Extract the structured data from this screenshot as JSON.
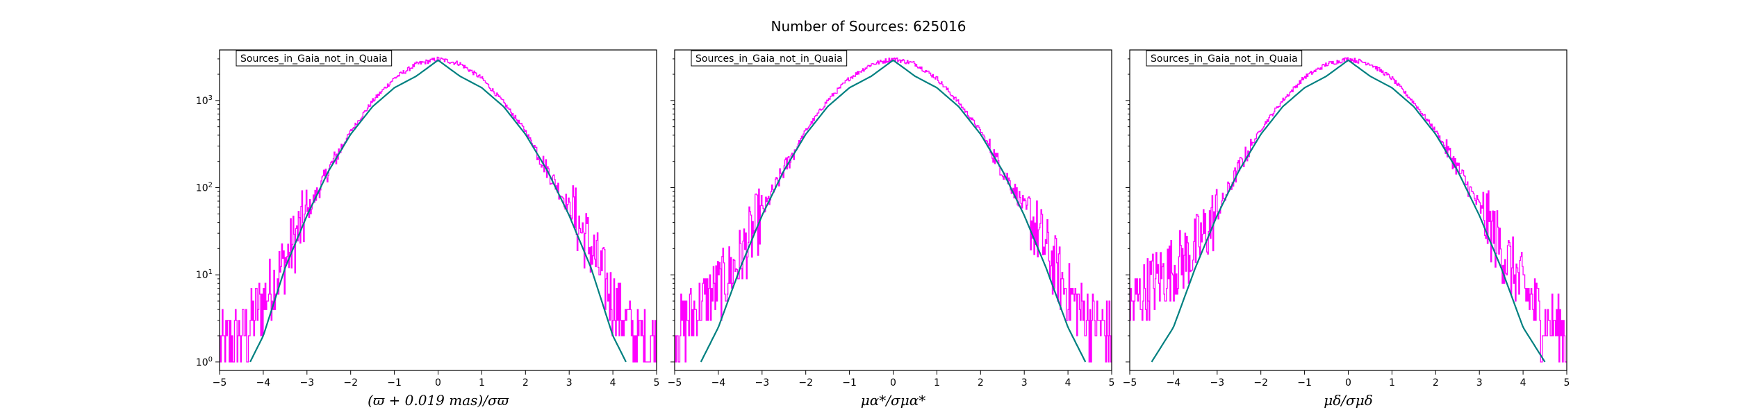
{
  "figure": {
    "title": "Number of Sources: 625016",
    "colors": {
      "histogram": "#ff00ff",
      "model": "#008080",
      "axes": "#000000"
    }
  },
  "chart_data": [
    {
      "type": "line",
      "panel": 1,
      "legend": "Sources_in_Gaia_not_in_Quaia",
      "legend_placement": "top-left",
      "xlabel": "(ϖ + 0.019 mas)/σϖ",
      "yscale": "log",
      "xlim": [
        -5,
        5
      ],
      "ylim": [
        0.8,
        3800
      ],
      "x_ticks": [
        "−5",
        "−4",
        "−3",
        "−2",
        "−1",
        "0",
        "1",
        "2",
        "3",
        "4",
        "5"
      ],
      "y_ticks": [
        {
          "base": "10",
          "exp": "0",
          "value": 1
        },
        {
          "base": "10",
          "exp": "1",
          "value": 10
        },
        {
          "base": "10",
          "exp": "2",
          "value": 100
        },
        {
          "base": "10",
          "exp": "3",
          "value": 1000
        }
      ],
      "grid": false,
      "series": [
        {
          "kind": "histogram",
          "x": [
            -5,
            -4.5,
            -4,
            -3.5,
            -3,
            -2.5,
            -2,
            -1.5,
            -1,
            -0.5,
            0,
            0.5,
            1,
            1.5,
            2,
            2.5,
            3,
            3.5,
            4,
            4.5,
            5
          ],
          "values": [
            1.5,
            2,
            5,
            14,
            50,
            160,
            440,
            980,
            1800,
            2600,
            3000,
            2650,
            1800,
            950,
            450,
            160,
            60,
            20,
            5,
            2,
            1.5
          ]
        },
        {
          "kind": "model",
          "x": [
            -4.3,
            -4,
            -3.5,
            -3,
            -2.5,
            -2,
            -1.5,
            -1,
            -0.5,
            0,
            0.5,
            1,
            1.5,
            2,
            2.5,
            3,
            3.5,
            4,
            4.3
          ],
          "values": [
            1,
            2,
            12,
            48,
            157,
            410,
            850,
            1400,
            1900,
            2900,
            1900,
            1400,
            850,
            410,
            157,
            48,
            12,
            2,
            1
          ]
        }
      ]
    },
    {
      "type": "line",
      "panel": 2,
      "legend": "Sources_in_Gaia_not_in_Quaia",
      "legend_placement": "top-left",
      "xlabel": "μα*/σμα*",
      "yscale": "log",
      "xlim": [
        -5,
        5
      ],
      "ylim": [
        0.8,
        3800
      ],
      "x_ticks": [
        "−5",
        "−4",
        "−3",
        "−2",
        "−1",
        "0",
        "1",
        "2",
        "3",
        "4",
        "5"
      ],
      "grid": false,
      "series": [
        {
          "kind": "histogram",
          "x": [
            -5,
            -4.5,
            -4,
            -3.5,
            -3,
            -2.5,
            -2,
            -1.5,
            -1,
            -0.5,
            0,
            0.5,
            1,
            1.5,
            2,
            2.5,
            3,
            3.5,
            4,
            4.5,
            5
          ],
          "values": [
            2,
            4,
            7,
            15,
            50,
            160,
            450,
            1000,
            1800,
            2600,
            3000,
            2650,
            1800,
            950,
            450,
            160,
            60,
            20,
            6,
            3,
            2
          ]
        },
        {
          "kind": "model",
          "x": [
            -4.4,
            -4,
            -3.5,
            -3,
            -2.5,
            -2,
            -1.5,
            -1,
            -0.5,
            0,
            0.5,
            1,
            1.5,
            2,
            2.5,
            3,
            3.5,
            4,
            4.4
          ],
          "values": [
            1,
            2.5,
            12,
            48,
            157,
            410,
            850,
            1400,
            1900,
            2900,
            1900,
            1400,
            850,
            410,
            157,
            48,
            12,
            2.5,
            1
          ]
        }
      ]
    },
    {
      "type": "line",
      "panel": 3,
      "legend": "Sources_in_Gaia_not_in_Quaia",
      "legend_placement": "top-left",
      "xlabel": "μδ/σμδ",
      "yscale": "log",
      "xlim": [
        -5,
        5
      ],
      "ylim": [
        0.8,
        3800
      ],
      "x_ticks": [
        "−5",
        "−4",
        "−3",
        "−2",
        "−1",
        "0",
        "1",
        "2",
        "3",
        "4",
        "5"
      ],
      "grid": false,
      "series": [
        {
          "kind": "histogram",
          "x": [
            -5,
            -4.5,
            -4,
            -3.5,
            -3,
            -2.5,
            -2,
            -1.5,
            -1,
            -0.5,
            0,
            0.5,
            1,
            1.5,
            2,
            2.5,
            3,
            3.5,
            4,
            4.5,
            5
          ],
          "values": [
            4,
            8,
            12,
            20,
            50,
            170,
            470,
            1000,
            1850,
            2600,
            3000,
            2650,
            1800,
            950,
            450,
            170,
            60,
            20,
            7,
            3,
            2
          ]
        },
        {
          "kind": "model",
          "x": [
            -4.5,
            -4,
            -3.5,
            -3,
            -2.5,
            -2,
            -1.5,
            -1,
            -0.5,
            0,
            0.5,
            1,
            1.5,
            2,
            2.5,
            3,
            3.5,
            4,
            4.5
          ],
          "values": [
            1,
            2.5,
            12,
            48,
            157,
            410,
            850,
            1400,
            1900,
            2900,
            1900,
            1400,
            850,
            410,
            157,
            48,
            12,
            2.5,
            1
          ]
        }
      ]
    }
  ]
}
